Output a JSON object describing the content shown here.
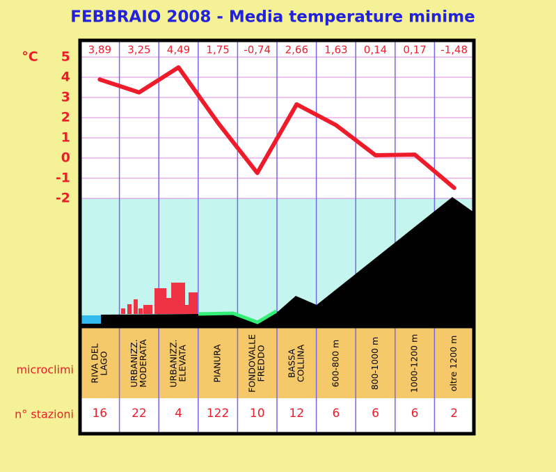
{
  "chart_data": {
    "type": "line",
    "title": "FEBBRAIO 2008 - Media temperature minime",
    "y_label": "°C",
    "categories_label": "microclimi",
    "stations_label": "n° stazioni",
    "categories": [
      [
        "RIVA DEL",
        "LAGO"
      ],
      [
        "URBANIZZ.",
        "MODERATA"
      ],
      [
        "URBANIZZ.",
        "ELEVATA"
      ],
      [
        "PIANURA"
      ],
      [
        "FONDOVALLE",
        "FREDDO"
      ],
      [
        "BASSA",
        "COLLINA"
      ],
      [
        "600-800 m"
      ],
      [
        "800-1000 m"
      ],
      [
        "1000-1200 m"
      ],
      [
        "oltre 1200 m"
      ]
    ],
    "values": [
      3.89,
      3.25,
      4.49,
      1.75,
      -0.74,
      2.66,
      1.63,
      0.14,
      0.17,
      -1.48
    ],
    "value_labels": [
      "3,89",
      "3,25",
      "4,49",
      "1,75",
      "-0,74",
      "2,66",
      "1,63",
      "0,14",
      "0,17",
      "-1,48"
    ],
    "stations": [
      16,
      22,
      4,
      122,
      10,
      12,
      6,
      6,
      6,
      2
    ],
    "color": "#ee1c2b",
    "ylim": [
      -2,
      5
    ],
    "yticks": [
      -2,
      -1,
      0,
      1,
      2,
      3,
      4,
      5
    ],
    "grid": true
  }
}
